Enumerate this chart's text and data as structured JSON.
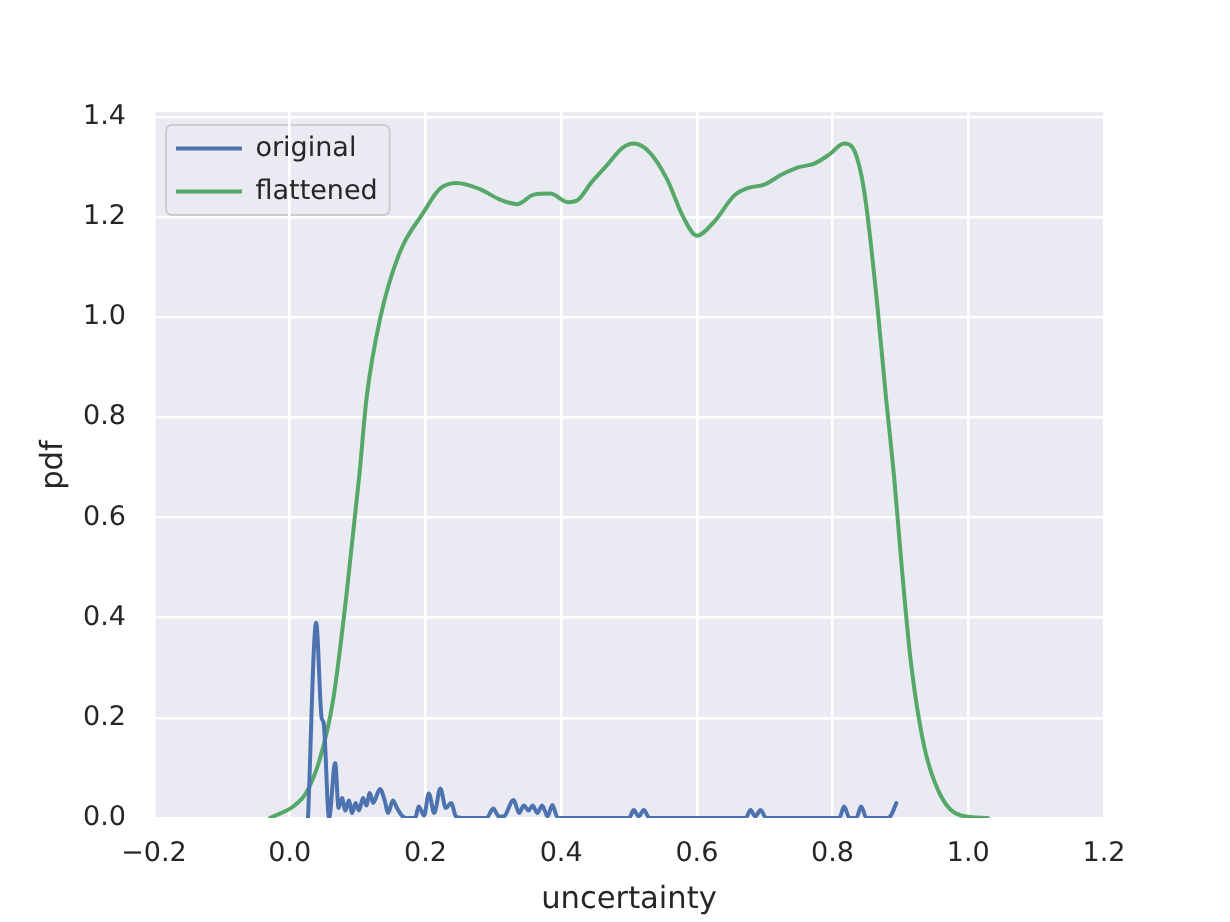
{
  "chart_data": {
    "type": "line",
    "xlabel": "uncertainty",
    "ylabel": "pdf",
    "xlim": [
      -0.2,
      1.2
    ],
    "ylim": [
      0,
      1.41
    ],
    "xticks": [
      {
        "value": -0.2,
        "label": "−0.2"
      },
      {
        "value": 0,
        "label": "0.0"
      },
      0.2,
      0.4,
      0.6,
      0.8,
      {
        "value": 1,
        "label": "1.0"
      },
      1.2
    ],
    "yticks": [
      {
        "value": 0,
        "label": "0.0"
      },
      0.2,
      0.4,
      0.6,
      0.8,
      {
        "value": 1,
        "label": "1.0"
      },
      1.2,
      1.4
    ],
    "grid": true,
    "legend": "top left",
    "series": [
      {
        "name": "original",
        "color": "#4c72b0",
        "x": [
          0.027,
          0.039,
          0.047,
          0.05,
          0.058,
          0.067,
          0.072,
          0.077,
          0.082,
          0.087,
          0.092,
          0.097,
          0.102,
          0.108,
          0.113,
          0.118,
          0.123,
          0.133,
          0.14,
          0.145,
          0.152,
          0.158,
          0.165,
          0.172,
          0.185,
          0.19,
          0.198,
          0.205,
          0.213,
          0.222,
          0.23,
          0.238,
          0.245,
          0.255,
          0.29,
          0.3,
          0.308,
          0.315,
          0.33,
          0.338,
          0.345,
          0.352,
          0.358,
          0.365,
          0.372,
          0.38,
          0.387,
          0.395,
          0.5,
          0.507,
          0.514,
          0.522,
          0.53,
          0.672,
          0.679,
          0.686,
          0.694,
          0.702,
          0.81,
          0.817,
          0.825,
          0.835,
          0.842,
          0.85,
          0.88,
          0.885,
          0.894
        ],
        "values": [
          0,
          0.39,
          0.2,
          0.19,
          0,
          0.11,
          0.02,
          0.04,
          0.015,
          0.035,
          0.01,
          0.03,
          0.015,
          0.04,
          0.025,
          0.05,
          0.03,
          0.058,
          0.035,
          0.01,
          0.035,
          0.02,
          0.005,
          0,
          0,
          0.023,
          0.005,
          0.049,
          0.01,
          0.059,
          0.02,
          0.03,
          0.003,
          0,
          0,
          0.019,
          0.003,
          0.003,
          0.036,
          0.01,
          0.025,
          0.015,
          0.025,
          0.01,
          0.025,
          0.003,
          0.026,
          0,
          0,
          0.016,
          0.003,
          0.016,
          0,
          0,
          0.016,
          0.003,
          0.016,
          0,
          0,
          0.023,
          0,
          0,
          0.023,
          0,
          0,
          0.003,
          0.03
        ]
      },
      {
        "name": "flattened",
        "color": "#55a868",
        "x": [
          -0.029,
          0.005,
          0.024,
          0.044,
          0.064,
          0.084,
          0.103,
          0.113,
          0.133,
          0.162,
          0.197,
          0.221,
          0.246,
          0.28,
          0.31,
          0.335,
          0.36,
          0.384,
          0.41,
          0.423,
          0.445,
          0.467,
          0.49,
          0.507,
          0.53,
          0.556,
          0.58,
          0.6,
          0.625,
          0.655,
          0.675,
          0.699,
          0.725,
          0.748,
          0.773,
          0.795,
          0.817,
          0.83,
          0.843,
          0.851,
          0.866,
          0.878,
          0.891,
          0.901,
          0.915,
          0.935,
          0.96,
          0.989,
          1.029
        ],
        "values": [
          0,
          0.023,
          0.05,
          0.116,
          0.236,
          0.45,
          0.69,
          0.836,
          0.996,
          1.129,
          1.209,
          1.256,
          1.268,
          1.256,
          1.235,
          1.226,
          1.245,
          1.247,
          1.23,
          1.233,
          1.27,
          1.303,
          1.338,
          1.347,
          1.33,
          1.276,
          1.2,
          1.163,
          1.19,
          1.243,
          1.258,
          1.265,
          1.285,
          1.299,
          1.307,
          1.325,
          1.347,
          1.338,
          1.28,
          1.209,
          1.023,
          0.85,
          0.676,
          0.516,
          0.316,
          0.143,
          0.043,
          0.005,
          0
        ]
      }
    ]
  }
}
